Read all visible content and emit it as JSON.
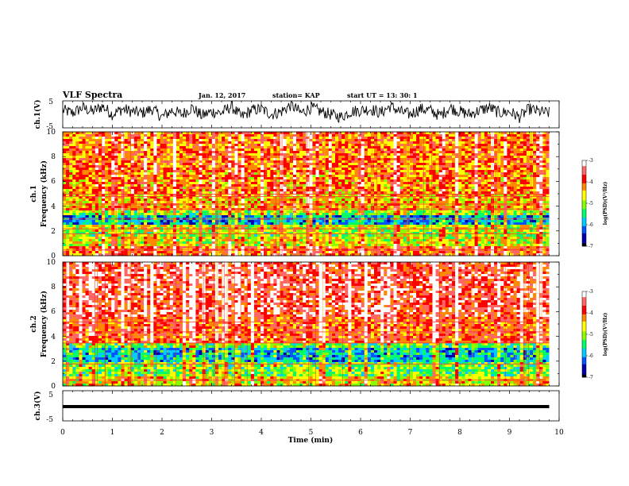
{
  "header": {
    "title": "VLF Spectra",
    "date": "Jan. 12, 2017",
    "station": "station= KAP",
    "start_time": "start  UT =   13: 30: 1"
  },
  "chart_data": [
    {
      "type": "line",
      "name": "ch1-waveform",
      "ylabel": "ch.1(V)",
      "ylim": [
        -5,
        5
      ],
      "y_ticks": [
        "5",
        "-5"
      ],
      "xlim": [
        0,
        10
      ],
      "x": [
        0,
        0.2,
        0.4,
        0.6,
        0.8,
        1.0,
        1.2,
        1.4,
        1.6,
        1.8,
        2.0,
        2.2,
        2.4,
        2.6,
        2.8,
        3.0,
        3.2,
        3.4,
        3.6,
        3.8,
        4.0,
        4.2,
        4.4,
        4.6,
        4.8,
        5.0,
        5.2,
        5.4,
        5.6,
        5.8,
        6.0,
        6.2,
        6.4,
        6.6,
        6.8,
        7.0,
        7.2,
        7.4,
        7.6,
        7.8,
        8.0,
        8.2,
        8.4,
        8.6,
        8.8,
        9.0,
        9.2,
        9.4,
        9.6,
        9.8
      ],
      "y": [
        1.5,
        0.5,
        2.5,
        1.0,
        3.0,
        0.0,
        2.0,
        1.0,
        0.5,
        2.0,
        -1.0,
        1.5,
        0.0,
        2.5,
        -0.5,
        1.0,
        0.5,
        3.0,
        -1.0,
        1.5,
        2.0,
        0.0,
        1.0,
        3.5,
        0.5,
        2.5,
        1.0,
        0.0,
        -1.0,
        1.0,
        1.5,
        2.0,
        0.5,
        3.0,
        1.0,
        0.0,
        2.0,
        1.5,
        -0.5,
        2.5,
        1.0,
        0.0,
        1.5,
        2.5,
        0.5,
        1.0,
        -1.0,
        2.0,
        1.0,
        0.5
      ]
    },
    {
      "type": "heatmap",
      "name": "ch1-spectrogram",
      "ylabel": "ch.1",
      "ylabel2": "Frequency (kHz)",
      "xlim": [
        0,
        9.8
      ],
      "ylim": [
        0,
        10
      ],
      "y_ticks": [
        "0",
        "2",
        "4",
        "6",
        "8",
        "10"
      ],
      "zlim": [
        -7,
        -3
      ],
      "bands": [
        {
          "fmin": 0.0,
          "fmax": 0.8,
          "level": -4.0
        },
        {
          "fmin": 0.8,
          "fmax": 1.5,
          "level": -4.7
        },
        {
          "fmin": 1.5,
          "fmax": 2.0,
          "level": -5.0
        },
        {
          "fmin": 2.0,
          "fmax": 2.5,
          "level": -4.8
        },
        {
          "fmin": 2.5,
          "fmax": 3.3,
          "level": -5.9
        },
        {
          "fmin": 3.3,
          "fmax": 3.6,
          "level": -5.0
        },
        {
          "fmin": 3.6,
          "fmax": 5.0,
          "level": -4.4
        },
        {
          "fmin": 5.0,
          "fmax": 7.0,
          "level": -4.2
        },
        {
          "fmin": 7.0,
          "fmax": 10.0,
          "level": -4.1
        }
      ],
      "lines_khz": [
        0.5,
        1.8,
        2.2,
        3.0,
        3.8,
        4.2,
        4.8,
        5.0
      ]
    },
    {
      "type": "heatmap",
      "name": "ch2-spectrogram",
      "ylabel": "ch.2",
      "ylabel2": "Frequency (kHz)",
      "xlim": [
        0,
        9.8
      ],
      "ylim": [
        0,
        10
      ],
      "y_ticks": [
        "0",
        "2",
        "4",
        "6",
        "8",
        "10"
      ],
      "zlim": [
        -7,
        -3
      ],
      "bands": [
        {
          "fmin": 0.0,
          "fmax": 0.8,
          "level": -4.6
        },
        {
          "fmin": 0.8,
          "fmax": 2.0,
          "level": -5.1
        },
        {
          "fmin": 2.0,
          "fmax": 3.0,
          "level": -5.8
        },
        {
          "fmin": 3.0,
          "fmax": 3.5,
          "level": -5.2
        },
        {
          "fmin": 3.5,
          "fmax": 5.5,
          "level": -3.9
        },
        {
          "fmin": 5.5,
          "fmax": 10.0,
          "level": -3.6
        }
      ],
      "lines_khz": [
        0.5,
        1.8,
        3.5,
        4.4,
        5.2
      ]
    },
    {
      "type": "line",
      "name": "ch3-waveform",
      "ylabel": "ch.3(V)",
      "ylim": [
        -5,
        5
      ],
      "y_ticks": [
        "5",
        "-5"
      ],
      "xlim": [
        0,
        10
      ],
      "x": [
        0,
        9.8
      ],
      "y": [
        0,
        0
      ]
    }
  ],
  "x_axis": {
    "label": "Time (min)",
    "ticks": [
      "0",
      "1",
      "2",
      "3",
      "4",
      "5",
      "6",
      "7",
      "8",
      "9",
      "10"
    ]
  },
  "colorbar": {
    "label": "log(PSD)(V²/Hz)",
    "ticks": [
      "-3",
      "-4",
      "-5",
      "-6",
      "-7"
    ],
    "colors": [
      "#000000",
      "#0000aa",
      "#0055ff",
      "#00ccff",
      "#00ff66",
      "#88ff00",
      "#ffff00",
      "#ff8800",
      "#ff0000",
      "#ff6666",
      "#ffffff"
    ]
  }
}
